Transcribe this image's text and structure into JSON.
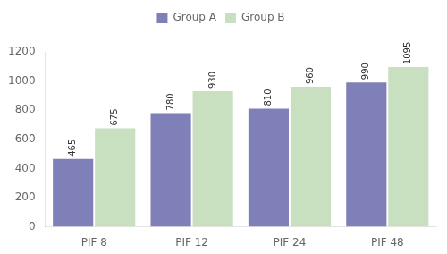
{
  "chart_data": {
    "type": "bar",
    "categories": [
      "PIF 8",
      "PIF 12",
      "PIF 24",
      "PIF 48"
    ],
    "series": [
      {
        "name": "Group A",
        "color": "#8080b8",
        "values": [
          465,
          780,
          810,
          990
        ]
      },
      {
        "name": "Group B",
        "color": "#c8dfc0",
        "values": [
          675,
          930,
          960,
          1095
        ]
      }
    ],
    "ylim": [
      0,
      1200
    ],
    "yticks": [
      0,
      200,
      400,
      600,
      800,
      1000,
      1200
    ],
    "grid": false,
    "legend": "top",
    "data_labels": true
  }
}
